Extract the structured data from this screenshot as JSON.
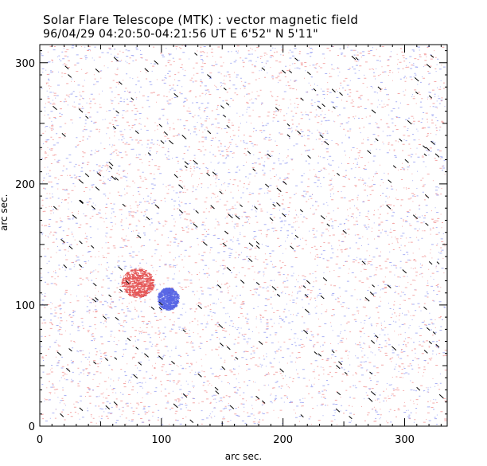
{
  "header": {
    "title": "Solar Flare Telescope (MTK) : vector magnetic field",
    "subtitle": "96/04/29  04:20:50-04:21:56 UT     E 6'52\"   N 5'11\""
  },
  "chart_data": {
    "type": "heatmap",
    "xlabel": "arc sec.",
    "ylabel": "arc sec.",
    "xlim": [
      0,
      335
    ],
    "ylim": [
      0,
      315
    ],
    "x_ticks": [
      0,
      100,
      200,
      300
    ],
    "y_ticks": [
      0,
      100,
      200,
      300
    ],
    "colors": {
      "positive": "#e03c3c",
      "negative": "#3c4ce0",
      "vectors": "#000000",
      "frame": "#000000"
    },
    "features": [
      {
        "name": "positive-polarity",
        "x": 80,
        "y": 118,
        "polarity": "positive"
      },
      {
        "name": "negative-polarity",
        "x": 105,
        "y": 105,
        "polarity": "negative"
      }
    ]
  }
}
